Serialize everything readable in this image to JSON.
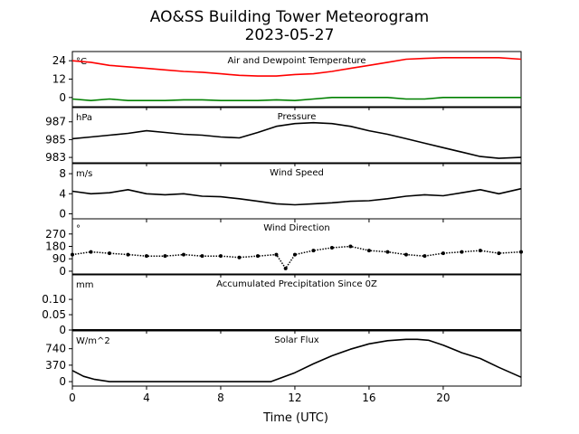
{
  "title": "AO&SS Building Tower Meteorogram",
  "subtitle": "2023-05-27",
  "xlabel": "Time (UTC)",
  "x_ticks": [
    "0",
    "4",
    "8",
    "12",
    "16",
    "20"
  ],
  "chart_data": [
    {
      "type": "line",
      "title": "Air and Dewpoint Temperature",
      "unit": "°C",
      "x_range": [
        0,
        24.2
      ],
      "ylim": [
        -6,
        30
      ],
      "yticks": [
        24,
        12,
        0
      ],
      "series": [
        {
          "color": "#ff0000",
          "x": [
            0,
            1,
            2,
            3,
            4,
            5,
            6,
            7,
            8,
            9,
            10,
            11,
            12,
            13,
            14,
            15,
            16,
            17,
            18,
            19,
            20,
            21,
            22,
            23,
            24.2
          ],
          "y": [
            24,
            23,
            21,
            20,
            19,
            18,
            17,
            16.5,
            15.5,
            14.5,
            14,
            14,
            15,
            15.5,
            17,
            19,
            21,
            23,
            25,
            25.5,
            26,
            26,
            26,
            26,
            25
          ]
        },
        {
          "color": "#008000",
          "x": [
            0,
            1,
            2,
            3,
            4,
            5,
            6,
            7,
            8,
            9,
            10,
            11,
            12,
            13,
            14,
            15,
            16,
            17,
            18,
            19,
            20,
            21,
            22,
            23,
            24.2
          ],
          "y": [
            -1,
            -2,
            -1,
            -2,
            -2,
            -2,
            -1.5,
            -1.5,
            -2,
            -2,
            -2,
            -1.5,
            -2,
            -1,
            0,
            0,
            0,
            0,
            -1,
            -1,
            0,
            0,
            0,
            0,
            0
          ]
        }
      ]
    },
    {
      "type": "line",
      "title": "Pressure",
      "unit": "hPa",
      "x_range": [
        0,
        24.2
      ],
      "ylim": [
        982.4,
        988.6
      ],
      "yticks": [
        987,
        985,
        983
      ],
      "series": [
        {
          "color": "#000000",
          "x": [
            0,
            1,
            2,
            3,
            4,
            5,
            6,
            7,
            8,
            9,
            10,
            11,
            12,
            13,
            14,
            15,
            16,
            17,
            18,
            19,
            20,
            21,
            22,
            23,
            24.2
          ],
          "y": [
            985.1,
            985.3,
            985.5,
            985.7,
            986,
            985.8,
            985.6,
            985.5,
            985.3,
            985.2,
            985.8,
            986.5,
            986.8,
            986.9,
            986.8,
            986.5,
            986,
            985.6,
            985.1,
            984.6,
            984.1,
            983.6,
            983.1,
            982.9,
            983
          ]
        }
      ]
    },
    {
      "type": "line",
      "title": "Wind Speed",
      "unit": "m/s",
      "x_range": [
        0,
        24.2
      ],
      "ylim": [
        -1,
        10
      ],
      "yticks": [
        8,
        4,
        0
      ],
      "series": [
        {
          "color": "#000000",
          "x": [
            0,
            1,
            2,
            3,
            4,
            5,
            6,
            7,
            8,
            9,
            10,
            11,
            12,
            13,
            14,
            15,
            16,
            17,
            18,
            19,
            20,
            21,
            22,
            23,
            24.2
          ],
          "y": [
            4.5,
            4,
            4.2,
            4.8,
            4,
            3.8,
            4,
            3.5,
            3.4,
            3,
            2.5,
            2,
            1.8,
            2,
            2.2,
            2.5,
            2.6,
            3,
            3.5,
            3.8,
            3.6,
            4.2,
            4.8,
            4,
            5
          ]
        }
      ]
    },
    {
      "type": "scatter",
      "title": "Wind Direction",
      "unit": "°",
      "x_range": [
        0,
        24.2
      ],
      "ylim": [
        -20,
        380
      ],
      "yticks": [
        270,
        180,
        90,
        0
      ],
      "series": [
        {
          "color": "#000000",
          "x": [
            0,
            1,
            2,
            3,
            4,
            5,
            6,
            7,
            8,
            9,
            10,
            11,
            11.5,
            12,
            13,
            14,
            15,
            16,
            17,
            18,
            19,
            20,
            21,
            22,
            23,
            24.2
          ],
          "y": [
            120,
            140,
            130,
            120,
            110,
            110,
            120,
            110,
            110,
            100,
            110,
            120,
            20,
            120,
            150,
            170,
            180,
            150,
            140,
            120,
            110,
            130,
            140,
            150,
            130,
            140
          ]
        }
      ]
    },
    {
      "type": "line",
      "title": "Accumulated Precipitation Since 0Z",
      "unit": "mm",
      "x_range": [
        0,
        24.2
      ],
      "ylim": [
        0,
        0.18
      ],
      "yticks": [
        0.1,
        0.05,
        0.0
      ],
      "series": [
        {
          "color": "#000000",
          "x": [
            0,
            24.2
          ],
          "y": [
            0,
            0
          ]
        }
      ]
    },
    {
      "type": "line",
      "title": "Solar Flux",
      "unit": "W/m^2",
      "x_range": [
        0,
        24.2
      ],
      "ylim": [
        -100,
        1140
      ],
      "yticks": [
        740,
        370,
        0
      ],
      "series": [
        {
          "color": "#000000",
          "x": [
            0,
            0.6,
            1.2,
            2,
            4,
            6,
            8,
            10,
            10.7,
            12,
            13,
            14,
            15,
            16,
            17,
            18,
            18.6,
            19.2,
            20,
            21,
            22,
            23,
            24.2
          ],
          "y": [
            250,
            120,
            50,
            0,
            0,
            0,
            0,
            0,
            0,
            200,
            400,
            580,
            730,
            850,
            920,
            950,
            950,
            930,
            820,
            650,
            520,
            320,
            100
          ]
        }
      ]
    }
  ]
}
